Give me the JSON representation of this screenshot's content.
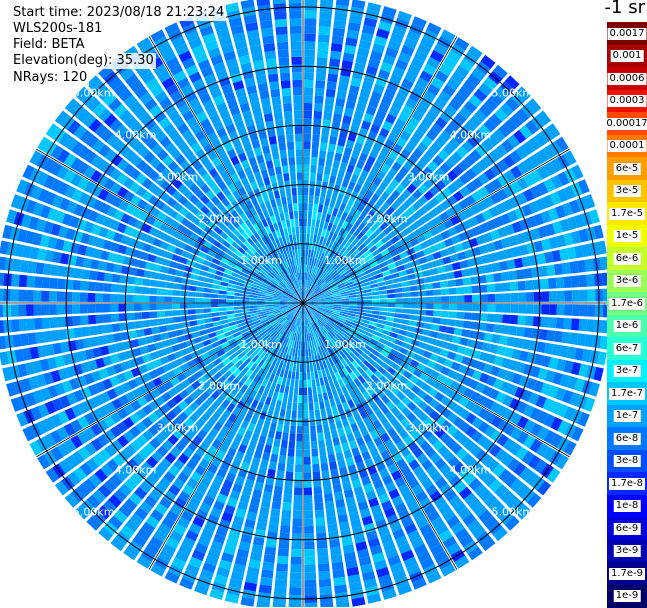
{
  "info": {
    "start_time": "Start time: 2023/08/18 21:23:24",
    "instrument": "WLS200s-181",
    "field": "Field: BETA",
    "elevation": "Elevation(deg): 35.30",
    "nrays": "NRays: 120"
  },
  "colorbar": {
    "unit": "-1 sr",
    "labels": [
      "0.0017",
      "0.001",
      "0.0006",
      "0.0003",
      "0.00017",
      "0.0001",
      "6e-5",
      "3e-5",
      "1.7e-5",
      "1e-5",
      "6e-6",
      "3e-6",
      "1.7e-6",
      "1e-6",
      "6e-7",
      "3e-7",
      "1.7e-7",
      "1e-7",
      "6e-8",
      "3e-8",
      "1.7e-8",
      "1e-8",
      "6e-9",
      "3e-9",
      "1.7e-9",
      "1e-9"
    ],
    "colors": [
      "#7d0000",
      "#a60000",
      "#c90000",
      "#ee1000",
      "#ff4a00",
      "#ff7800",
      "#ff9e00",
      "#ffc300",
      "#ffe800",
      "#f2ff00",
      "#c8ff2b",
      "#9dff55",
      "#74ff82",
      "#4bffad",
      "#27ffd6",
      "#00f0ff",
      "#00c8ff",
      "#00a0ff",
      "#0078ff",
      "#0050ff",
      "#0028ff",
      "#0000ff",
      "#0000d9",
      "#0000b3",
      "#00008d",
      "#000066"
    ]
  },
  "chart_data": {
    "type": "heatmap",
    "title": "",
    "projection": "polar (PPI)",
    "range_rings_km": [
      1,
      2,
      3,
      4,
      5
    ],
    "ring_labels": [
      "1.00km",
      "2.00km",
      "3.00km",
      "4.00km",
      "5.00km"
    ],
    "max_range_km": 5.2,
    "nrays": 120,
    "spokes_deg": [
      0,
      30,
      60,
      90,
      120,
      150,
      180,
      210,
      240,
      270,
      300,
      330
    ],
    "value_range": [
      1e-09,
      0.0017
    ],
    "typical_value_range": [
      1e-08,
      3e-07
    ],
    "grid": true
  }
}
